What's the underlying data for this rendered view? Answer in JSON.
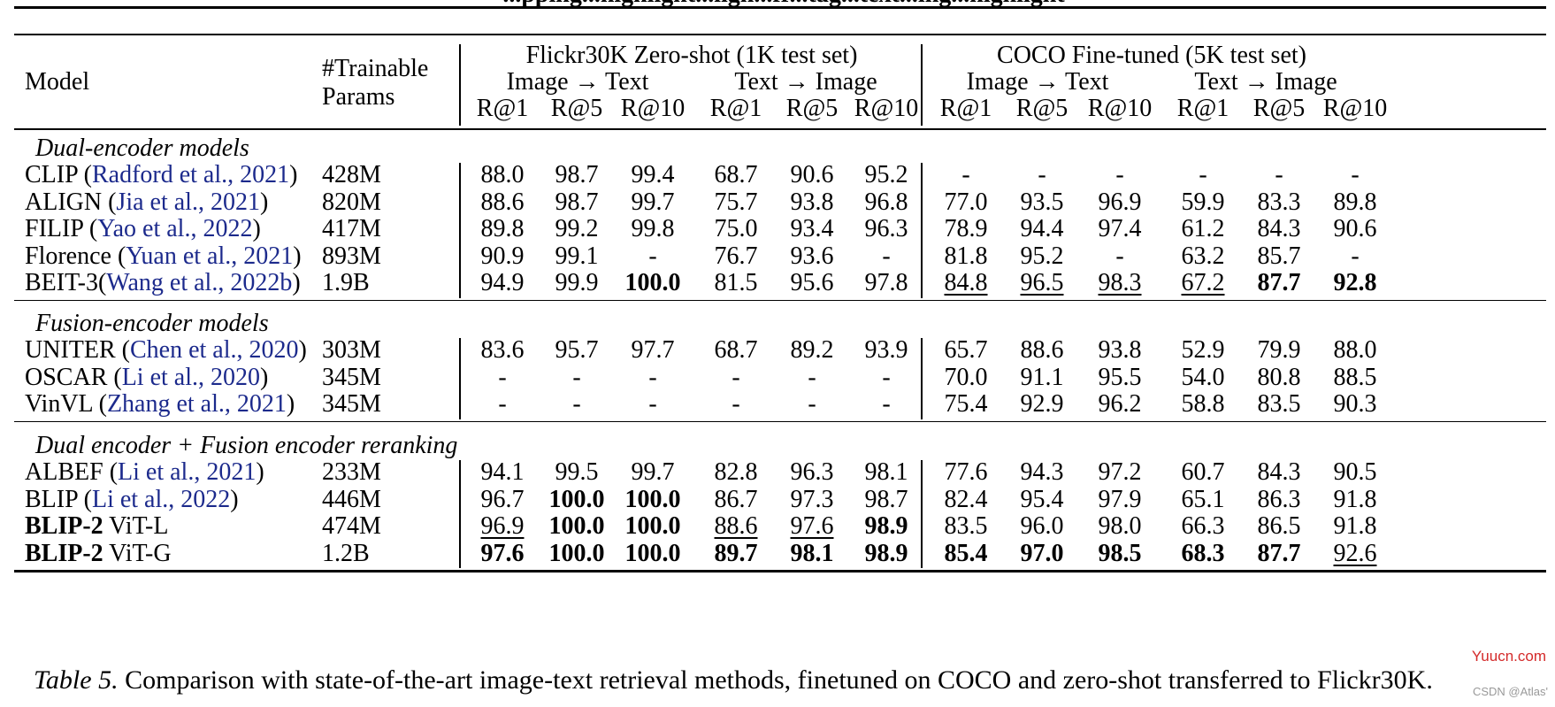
{
  "top_heading": "...pping...highlight...ligh...fr...tag...text...ing...highlight",
  "headers": {
    "model": "Model",
    "params": "#Trainable Params",
    "flickr": "Flickr30K Zero-shot (1K test set)",
    "coco": "COCO Fine-tuned (5K test set)",
    "i2t": "Image → Text",
    "t2i": "Text → Image",
    "metrics": [
      "R@1",
      "R@5",
      "R@10",
      "R@1",
      "R@5",
      "R@10",
      "R@1",
      "R@5",
      "R@10",
      "R@1",
      "R@5",
      "R@10"
    ]
  },
  "sections": [
    {
      "title": "Dual-encoder models",
      "rows": [
        {
          "name": "CLIP ",
          "cite": "Radford et al., 2021",
          "cite_wrap": true,
          "params": "428M",
          "values": [
            "88.0",
            "98.7",
            "99.4",
            "68.7",
            "90.6",
            "95.2",
            "-",
            "-",
            "-",
            "-",
            "-",
            "-"
          ]
        },
        {
          "name": "ALIGN ",
          "cite": "Jia et al., 2021",
          "cite_wrap": true,
          "params": "820M",
          "values": [
            "88.6",
            "98.7",
            "99.7",
            "75.7",
            "93.8",
            "96.8",
            "77.0",
            "93.5",
            "96.9",
            "59.9",
            "83.3",
            "89.8"
          ]
        },
        {
          "name": "FILIP ",
          "cite": "Yao et al., 2022",
          "cite_wrap": true,
          "params": "417M",
          "values": [
            "89.8",
            "99.2",
            "99.8",
            "75.0",
            "93.4",
            "96.3",
            "78.9",
            "94.4",
            "97.4",
            "61.2",
            "84.3",
            "90.6"
          ]
        },
        {
          "name": "Florence ",
          "cite": "Yuan et al., 2021",
          "cite_wrap": true,
          "params": "893M",
          "values": [
            "90.9",
            "99.1",
            "-",
            "76.7",
            "93.6",
            "-",
            "81.8",
            "95.2",
            "-",
            "63.2",
            "85.7",
            "-"
          ]
        },
        {
          "name": "BEIT-3",
          "cite": "Wang et al., 2022b",
          "cite_wrap": true,
          "params": "1.9B",
          "values": [
            "94.9",
            "99.9",
            "100.0",
            "81.5",
            "95.6",
            "97.8",
            "84.8",
            "96.5",
            "98.3",
            "67.2",
            "87.7",
            "92.8"
          ],
          "bold": [
            2,
            10,
            11
          ],
          "underline": [
            6,
            7,
            8,
            9
          ]
        }
      ]
    },
    {
      "title": "Fusion-encoder models",
      "rows": [
        {
          "name": "UNITER ",
          "cite": "Chen et al., 2020",
          "cite_wrap": true,
          "params": "303M",
          "values": [
            "83.6",
            "95.7",
            "97.7",
            "68.7",
            "89.2",
            "93.9",
            "65.7",
            "88.6",
            "93.8",
            "52.9",
            "79.9",
            "88.0"
          ]
        },
        {
          "name": "OSCAR ",
          "cite": "Li et al., 2020",
          "cite_wrap": true,
          "params": "345M",
          "values": [
            "-",
            "-",
            "-",
            "-",
            "-",
            "-",
            "70.0",
            "91.1",
            "95.5",
            "54.0",
            "80.8",
            "88.5"
          ]
        },
        {
          "name": "VinVL ",
          "cite": "Zhang et al., 2021",
          "cite_wrap": true,
          "params": "345M",
          "values": [
            "-",
            "-",
            "-",
            "-",
            "-",
            "-",
            "75.4",
            "92.9",
            "96.2",
            "58.8",
            "83.5",
            "90.3"
          ]
        }
      ]
    },
    {
      "title": "Dual encoder + Fusion encoder reranking",
      "rows": [
        {
          "name": "ALBEF ",
          "cite": "Li et al., 2021",
          "cite_wrap": true,
          "params": "233M",
          "values": [
            "94.1",
            "99.5",
            "99.7",
            "82.8",
            "96.3",
            "98.1",
            "77.6",
            "94.3",
            "97.2",
            "60.7",
            "84.3",
            "90.5"
          ]
        },
        {
          "name": "BLIP ",
          "cite": "Li et al., 2022",
          "cite_wrap": true,
          "params": "446M",
          "values": [
            "96.7",
            "100.0",
            "100.0",
            "86.7",
            "97.3",
            "98.7",
            "82.4",
            "95.4",
            "97.9",
            "65.1",
            "86.3",
            "91.8"
          ],
          "bold": [
            1,
            2
          ]
        },
        {
          "name": "BLIP-2",
          "name_bold": true,
          "suffix": " ViT-L",
          "params": "474M",
          "values": [
            "96.9",
            "100.0",
            "100.0",
            "88.6",
            "97.6",
            "98.9",
            "83.5",
            "96.0",
            "98.0",
            "66.3",
            "86.5",
            "91.8"
          ],
          "bold": [
            1,
            2,
            5
          ],
          "underline": [
            0,
            3,
            4
          ]
        },
        {
          "name": "BLIP-2",
          "name_bold": true,
          "suffix": " ViT-G",
          "params": "1.2B",
          "values": [
            "97.6",
            "100.0",
            "100.0",
            "89.7",
            "98.1",
            "98.9",
            "85.4",
            "97.0",
            "98.5",
            "68.3",
            "87.7",
            "92.6"
          ],
          "bold": [
            0,
            1,
            2,
            3,
            4,
            5,
            6,
            7,
            8,
            9,
            10
          ],
          "underline": [
            11
          ]
        }
      ]
    }
  ],
  "caption": {
    "tag": "Table 5.",
    "text": " Comparison with state-of-the-art image-text retrieval methods, finetuned on COCO and zero-shot transferred to Flickr30K."
  },
  "watermark": {
    "site": "Yuucn.com",
    "author": "CSDN @Atlas'"
  }
}
